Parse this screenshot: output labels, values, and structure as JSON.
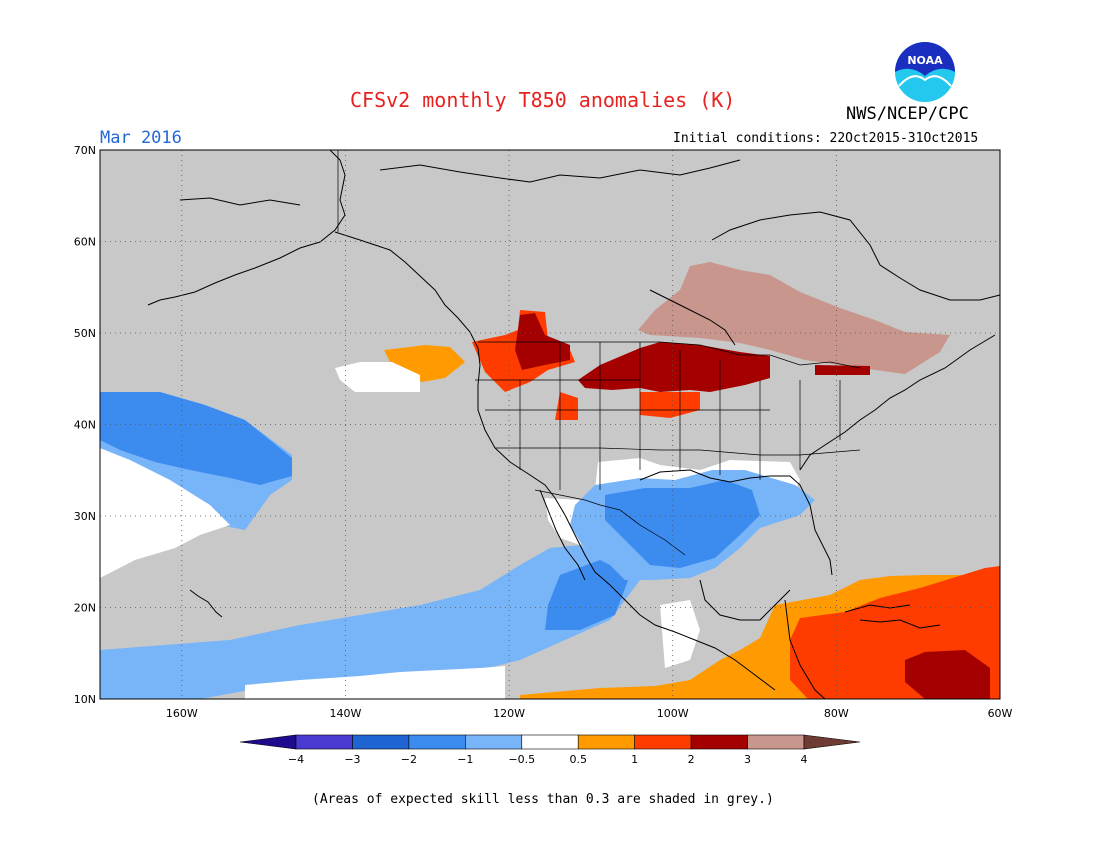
{
  "header": {
    "title": "CFSv2 monthly T850 anomalies (K)",
    "agency": "NWS/NCEP/CPC",
    "logo_text": "NOAA",
    "month": "Mar 2016",
    "initial_conditions": "Initial conditions: 22Oct2015-31Oct2015"
  },
  "map": {
    "extent": {
      "lon_min": -170,
      "lon_max": -60,
      "lat_min": 10,
      "lat_max": 70
    },
    "lat_ticks": [
      {
        "value": 70,
        "label": "70N"
      },
      {
        "value": 60,
        "label": "60N"
      },
      {
        "value": 50,
        "label": "50N"
      },
      {
        "value": 40,
        "label": "40N"
      },
      {
        "value": 30,
        "label": "30N"
      },
      {
        "value": 20,
        "label": "20N"
      },
      {
        "value": 10,
        "label": "10N"
      }
    ],
    "lon_ticks": [
      {
        "value": -160,
        "label": "160W"
      },
      {
        "value": -140,
        "label": "140W"
      },
      {
        "value": -120,
        "label": "120W"
      },
      {
        "value": -100,
        "label": "100W"
      },
      {
        "value": -80,
        "label": "80W"
      },
      {
        "value": -60,
        "label": "60W"
      }
    ],
    "low_skill_color": "#c8c8c8"
  },
  "colorbar": {
    "colors": [
      "#1e0a8c",
      "#4a3ad0",
      "#1e64d2",
      "#3c8cf0",
      "#78b4f8",
      "#ffffff",
      "#ff9a00",
      "#ff3c00",
      "#a50000",
      "#c8968c",
      "#6e3c32"
    ],
    "labels": [
      "−4",
      "−3",
      "−2",
      "−1",
      "−0.5",
      "0.5",
      "1",
      "2",
      "3",
      "4"
    ]
  },
  "footnote": "(Areas of expected skill less than 0.3 are shaded in grey.)"
}
